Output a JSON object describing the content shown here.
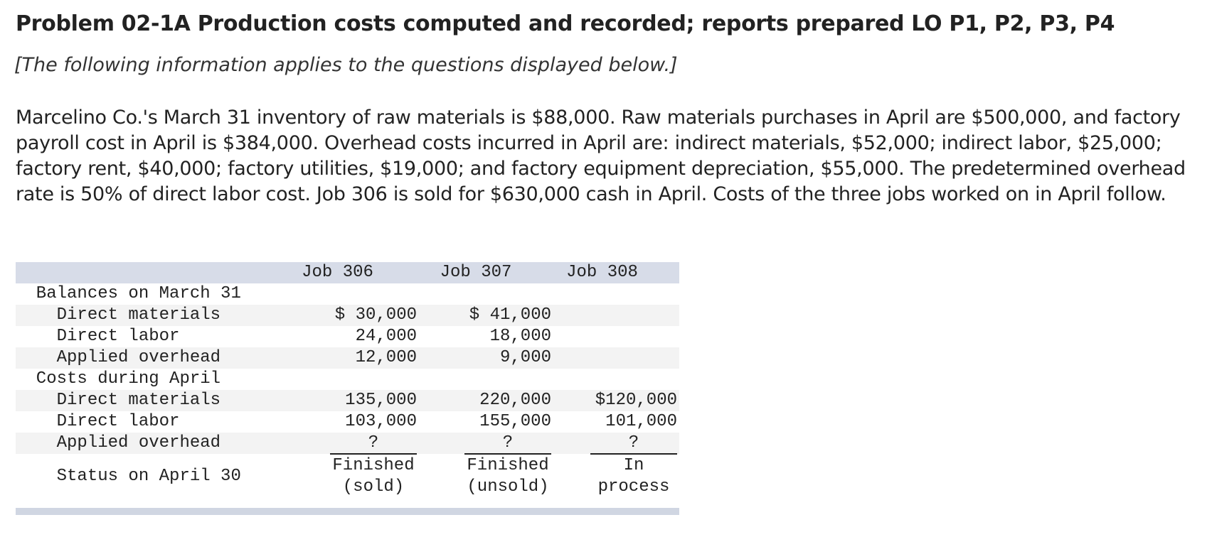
{
  "header": {
    "title": "Problem 02-1A Production costs computed and recorded; reports prepared LO P1, P2, P3, P4",
    "note": "[The following information applies to the questions displayed below.]"
  },
  "paragraph": "Marcelino Co.'s March 31 inventory of raw materials is $88,000. Raw materials purchases in April are $500,000, and factory payroll cost in April is $384,000. Overhead costs incurred in April are: indirect materials, $52,000; indirect labor, $25,000; factory rent, $40,000; factory utilities, $19,000; and factory equipment depreciation, $55,000. The predetermined overhead rate is 50% of direct labor cost. Job 306 is sold for $630,000 cash in April. Costs of the three jobs worked on in April follow.",
  "table": {
    "columns": [
      "Job 306",
      "Job 307",
      "Job 308"
    ],
    "rows": [
      {
        "label": "Balances on March 31"
      },
      {
        "label": "Direct materials",
        "cells": [
          "$ 30,000",
          "$ 41,000",
          null
        ]
      },
      {
        "label": "Direct labor",
        "cells": [
          "24,000",
          "18,000",
          null
        ]
      },
      {
        "label": "Applied overhead",
        "cells": [
          "12,000",
          "9,000",
          null
        ]
      },
      {
        "label": "Costs during April"
      },
      {
        "label": "Direct materials",
        "cells": [
          "135,000",
          "220,000",
          "$120,000"
        ]
      },
      {
        "label": "Direct labor",
        "cells": [
          "103,000",
          "155,000",
          "101,000"
        ]
      },
      {
        "label": "Applied overhead",
        "cells": [
          "?",
          "?",
          "?"
        ]
      },
      {
        "label": "Status on April 30",
        "cells": [
          [
            "Finished",
            "(sold)"
          ],
          [
            "Finished",
            "(unsold)"
          ],
          [
            "In",
            "process"
          ]
        ]
      }
    ]
  }
}
